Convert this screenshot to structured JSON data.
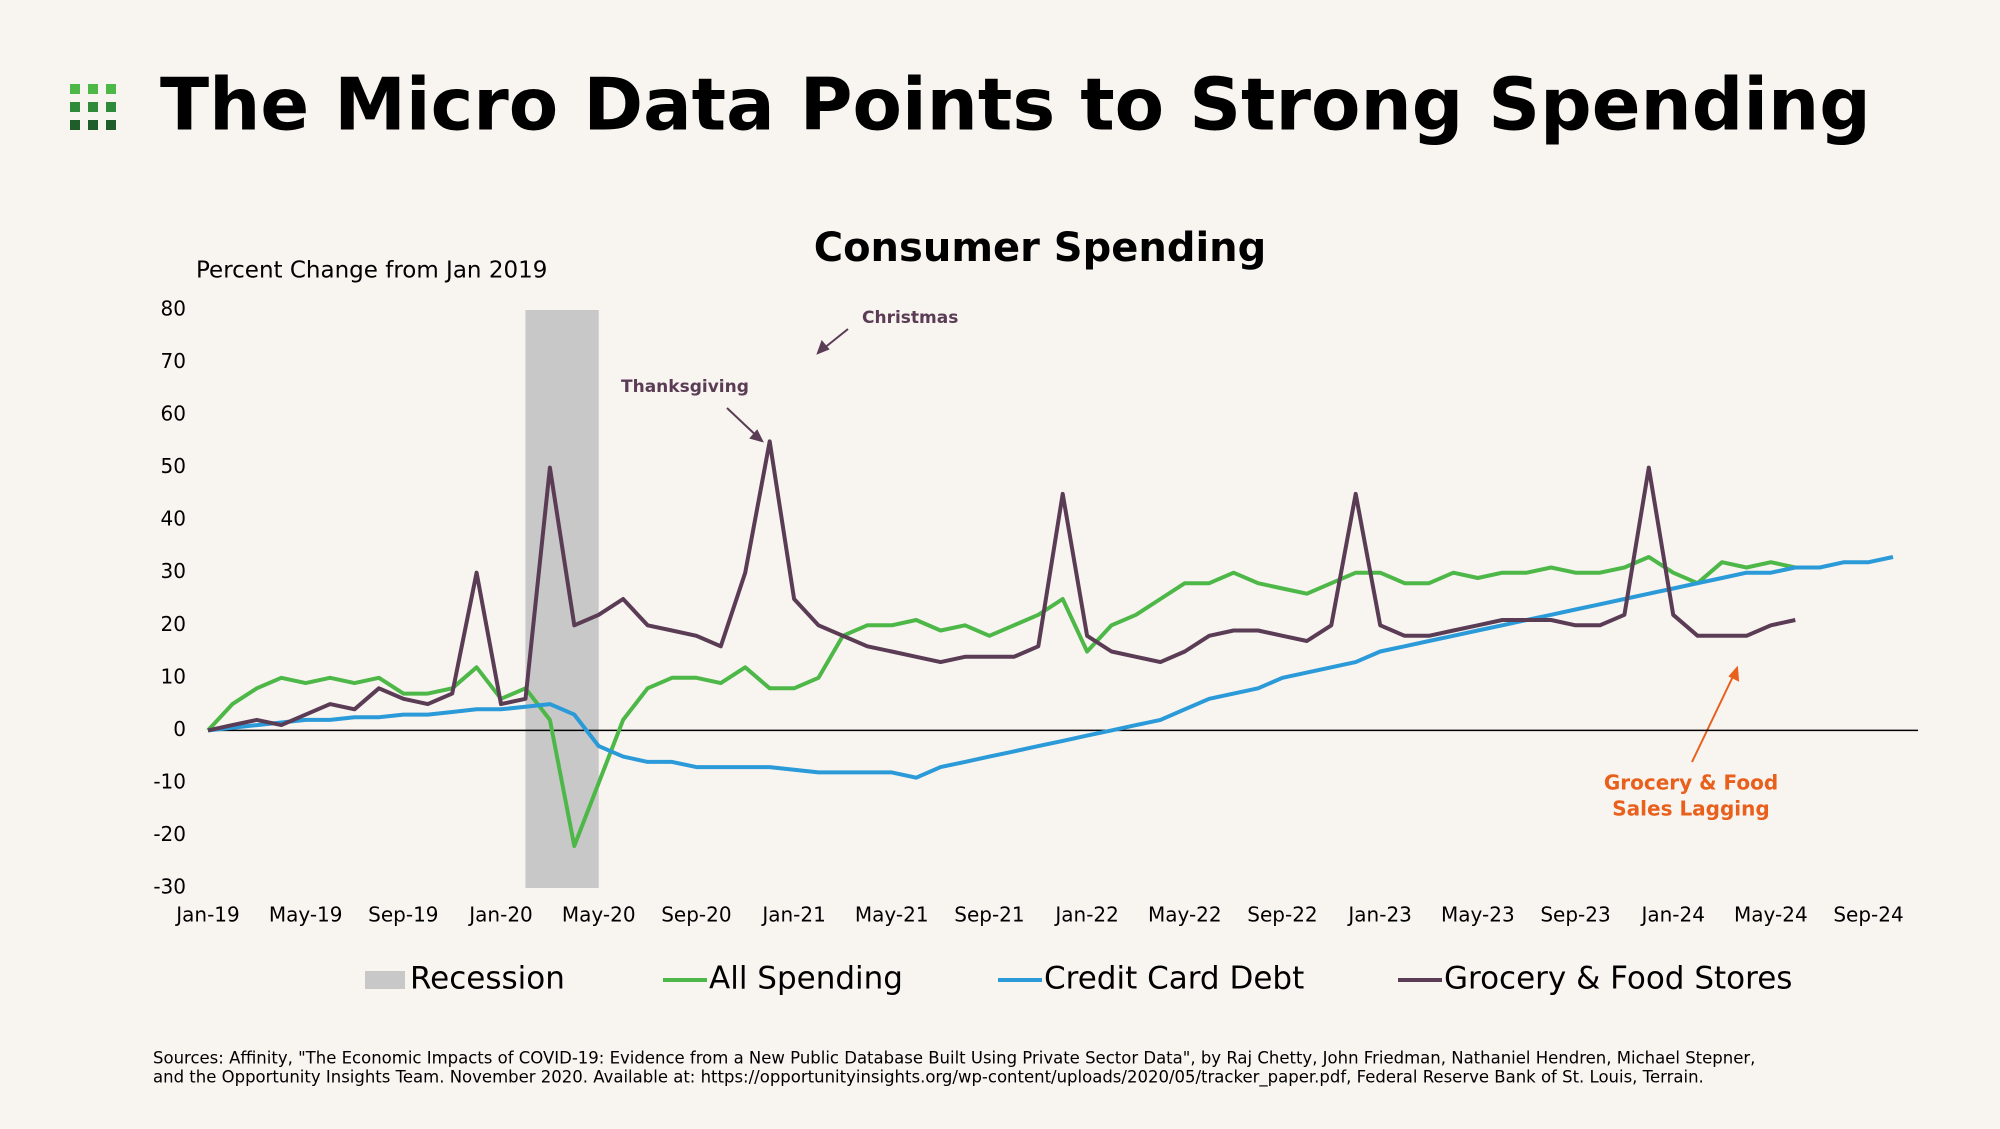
{
  "header": {
    "title": "The Micro Data Points to Strong Spending"
  },
  "chart_data": {
    "type": "line",
    "title": "Consumer Spending",
    "y_label": "Percent Change from Jan 2019",
    "x": [
      "Jan-19",
      "Feb-19",
      "Mar-19",
      "Apr-19",
      "May-19",
      "Jun-19",
      "Jul-19",
      "Aug-19",
      "Sep-19",
      "Oct-19",
      "Nov-19",
      "Dec-19",
      "Jan-20",
      "Feb-20",
      "Mar-20",
      "Apr-20",
      "May-20",
      "Jun-20",
      "Jul-20",
      "Aug-20",
      "Sep-20",
      "Oct-20",
      "Nov-20",
      "Dec-20",
      "Jan-21",
      "Feb-21",
      "Mar-21",
      "Apr-21",
      "May-21",
      "Jun-21",
      "Jul-21",
      "Aug-21",
      "Sep-21",
      "Oct-21",
      "Nov-21",
      "Dec-21",
      "Jan-22",
      "Feb-22",
      "Mar-22",
      "Apr-22",
      "May-22",
      "Jun-22",
      "Jul-22",
      "Aug-22",
      "Sep-22",
      "Oct-22",
      "Nov-22",
      "Dec-22",
      "Jan-23",
      "Feb-23",
      "Mar-23",
      "Apr-23",
      "May-23",
      "Jun-23",
      "Jul-23",
      "Aug-23",
      "Sep-23",
      "Oct-23",
      "Nov-23",
      "Dec-23",
      "Jan-24",
      "Feb-24",
      "Mar-24",
      "Apr-24",
      "May-24",
      "Jun-24",
      "Jul-24",
      "Aug-24",
      "Sep-24",
      "Oct-24"
    ],
    "xticks": [
      "Jan-19",
      "May-19",
      "Sep-19",
      "Jan-20",
      "May-20",
      "Sep-20",
      "Jan-21",
      "May-21",
      "Sep-21",
      "Jan-22",
      "May-22",
      "Sep-22",
      "Jan-23",
      "May-23",
      "Sep-23",
      "Jan-24",
      "May-24",
      "Sep-24"
    ],
    "ylim": [
      -30,
      80
    ],
    "yticks": [
      -30,
      -20,
      -10,
      0,
      10,
      20,
      30,
      40,
      50,
      60,
      70,
      80
    ],
    "recession": {
      "name": "Recession",
      "start": "Feb-20",
      "end": "May-20",
      "color": "#c8c8c8"
    },
    "series": [
      {
        "name": "All Spending",
        "color": "#4db848",
        "values": [
          0,
          5,
          8,
          10,
          9,
          10,
          9,
          10,
          7,
          7,
          8,
          12,
          6,
          8,
          2,
          -22,
          -10,
          2,
          8,
          10,
          10,
          9,
          12,
          8,
          8,
          10,
          18,
          20,
          20,
          21,
          19,
          20,
          18,
          20,
          22,
          25,
          15,
          20,
          22,
          25,
          28,
          28,
          30,
          28,
          27,
          26,
          28,
          30,
          30,
          28,
          28,
          30,
          29,
          30,
          30,
          31,
          30,
          30,
          31,
          33,
          30,
          28,
          32,
          31,
          32,
          31,
          null,
          null,
          null,
          null
        ]
      },
      {
        "name": "Credit Card Debt",
        "color": "#2b9ad8",
        "values": [
          0,
          0.5,
          1,
          1.5,
          2,
          2,
          2.5,
          2.5,
          3,
          3,
          3.5,
          4,
          4,
          4.5,
          5,
          3,
          -3,
          -5,
          -6,
          -6,
          -7,
          -7,
          -7,
          -7,
          -7.5,
          -8,
          -8,
          -8,
          -8,
          -9,
          -7,
          -6,
          -5,
          -4,
          -3,
          -2,
          -1,
          0,
          1,
          2,
          4,
          6,
          7,
          8,
          10,
          11,
          12,
          13,
          15,
          16,
          17,
          18,
          19,
          20,
          21,
          22,
          23,
          24,
          25,
          26,
          27,
          28,
          29,
          30,
          30,
          31,
          31,
          32,
          32,
          33
        ]
      },
      {
        "name": "Grocery & Food Stores",
        "color": "#5a3c55",
        "values": [
          0,
          1,
          2,
          1,
          3,
          5,
          4,
          8,
          6,
          5,
          7,
          30,
          5,
          6,
          50,
          20,
          22,
          25,
          20,
          19,
          18,
          16,
          30,
          55,
          25,
          20,
          18,
          16,
          15,
          14,
          13,
          14,
          14,
          14,
          16,
          45,
          18,
          15,
          14,
          13,
          15,
          18,
          19,
          19,
          18,
          17,
          20,
          45,
          20,
          18,
          18,
          19,
          20,
          21,
          21,
          21,
          20,
          20,
          22,
          50,
          22,
          18,
          18,
          18,
          20,
          21,
          null,
          null,
          null,
          null
        ]
      }
    ],
    "annotations": [
      {
        "text": "Christmas",
        "color": "#5a3c55"
      },
      {
        "text": "Thanksgiving",
        "color": "#5a3c55"
      },
      {
        "lines": [
          "Grocery & Food",
          "Sales Lagging"
        ],
        "color": "#e8601c"
      }
    ],
    "sources": [
      "Sources: Affinity, \"The Economic Impacts of COVID-19: Evidence from a New Public Database Built Using Private Sector Data\", by Raj Chetty, John Friedman, Nathaniel Hendren, Michael Stepner,",
      "and the Opportunity Insights Team. November 2020. Available at: https://opportunityinsights.org/wp-content/uploads/2020/05/tracker_paper.pdf, Federal Reserve Bank of St. Louis, Terrain."
    ]
  }
}
